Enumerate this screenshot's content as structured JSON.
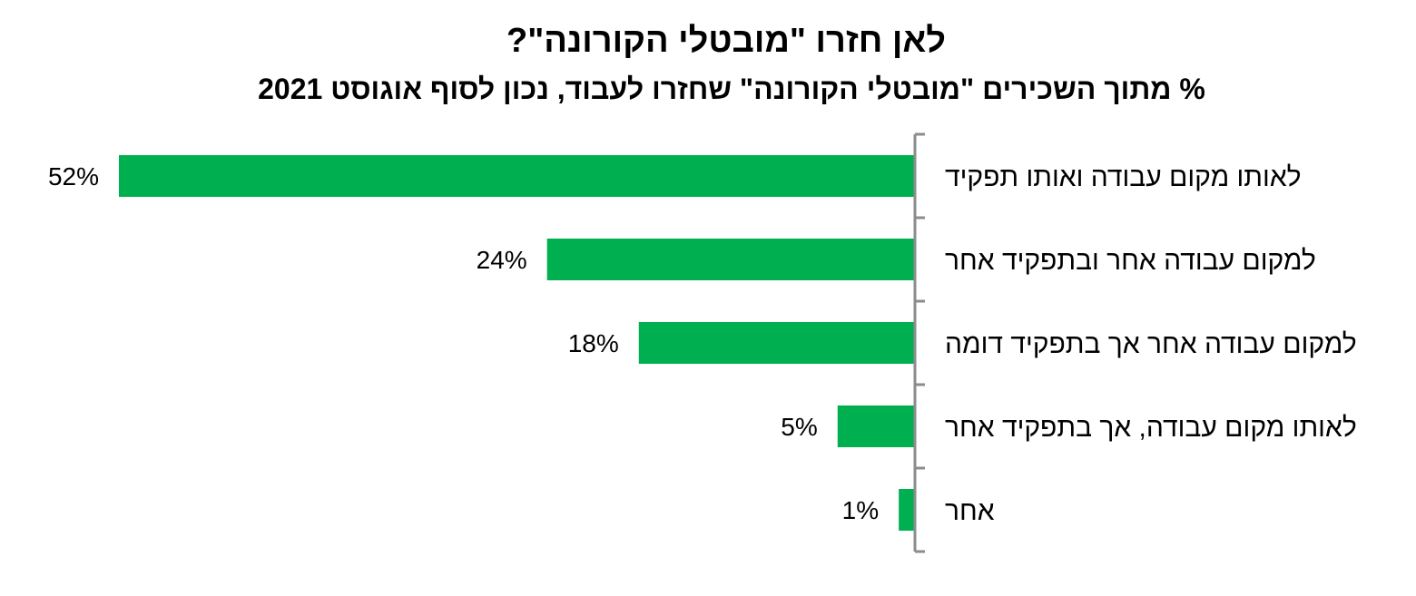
{
  "chart_data": {
    "type": "bar",
    "orientation": "horizontal",
    "title": "לאן חזרו \"מובטלי הקורונה\"?",
    "subtitle": "% מתוך השכירים \"מובטלי הקורונה\" שחזרו לעבוד, נכון לסוף אוגוסט 2021",
    "categories": [
      "לאותו מקום עבודה ואותו תפקיד",
      "למקום עבודה אחר ובתפקיד אחר",
      "למקום עבודה אחר אך בתפקיד דומה",
      "לאותו מקום עבודה, אך בתפקיד אחר",
      "אחר"
    ],
    "values": [
      52,
      24,
      18,
      5,
      1
    ],
    "value_labels": [
      "52%",
      "24%",
      "18%",
      "5%",
      "1%"
    ],
    "unit": "%",
    "bar_color": "#00b050",
    "axis_color": "#8c8c8c",
    "grid": false,
    "legend": "none"
  }
}
